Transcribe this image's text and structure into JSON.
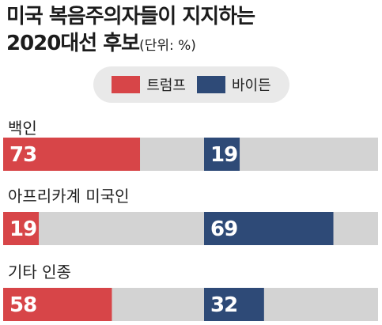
{
  "chart_data": {
    "type": "bar",
    "title_line1": "미국 복음주의자들이 지지하는",
    "title_line2": "2020대선 후보",
    "unit": "(단위: %)",
    "xlim": [
      0,
      100
    ],
    "legend": [
      {
        "name": "트럼프",
        "color": "#d74548"
      },
      {
        "name": "바이든",
        "color": "#2e4a77"
      }
    ],
    "groups": [
      {
        "label": "백인",
        "trump": 73,
        "biden": 19
      },
      {
        "label": "아프리카계 미국인",
        "trump": 19,
        "biden": 69
      },
      {
        "label": "기타 인종",
        "trump": 58,
        "biden": 32
      }
    ]
  }
}
